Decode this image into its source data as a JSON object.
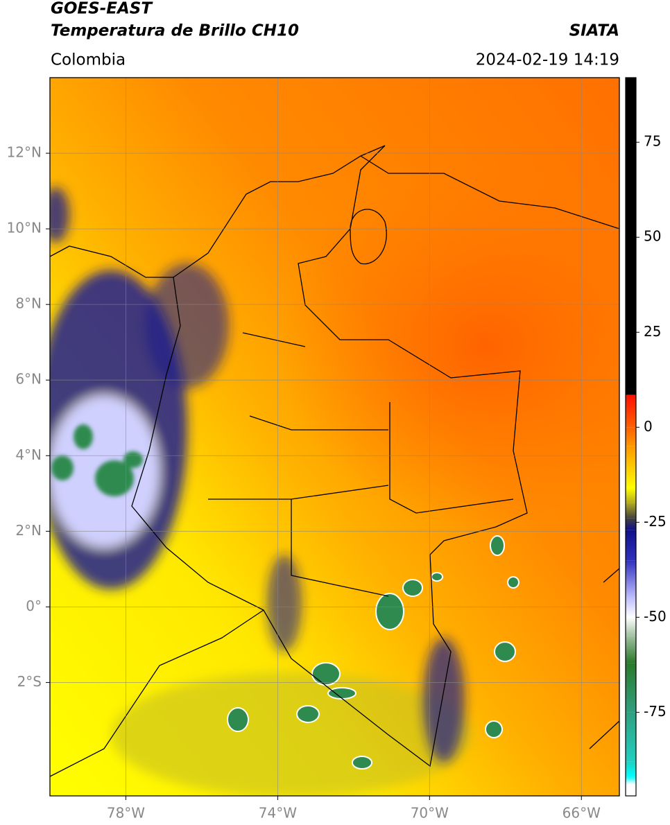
{
  "map": {
    "title": [
      "GOES-EAST",
      "Temperatura de Brillo CH10"
    ],
    "region": "Colombia",
    "agency": "SIATA",
    "datetime": "2024-02-19 14:19",
    "xlim": [
      -80,
      -65
    ],
    "ylim": [
      -5,
      14
    ],
    "xticks": [
      {
        "value": -78,
        "label": "78°W"
      },
      {
        "value": -74,
        "label": "74°W"
      },
      {
        "value": -70,
        "label": "70°W"
      },
      {
        "value": -66,
        "label": "66°W"
      }
    ],
    "yticks": [
      {
        "value": 12,
        "label": "12°N"
      },
      {
        "value": 10,
        "label": "10°N"
      },
      {
        "value": 8,
        "label": "8°N"
      },
      {
        "value": 6,
        "label": "6°N"
      },
      {
        "value": 4,
        "label": "4°N"
      },
      {
        "value": 2,
        "label": "2°N"
      },
      {
        "value": 0,
        "label": "0°"
      },
      {
        "value": -2,
        "label": "2°S"
      }
    ],
    "grid": true,
    "colorbar": {
      "lim": [
        -97,
        92
      ],
      "ticks": [
        75,
        50,
        25,
        0,
        -25,
        -50,
        -75
      ],
      "stops": [
        {
          "value": 92,
          "color": "#000000"
        },
        {
          "value": 8.5,
          "color": "#000000"
        },
        {
          "value": 8.5,
          "color": "#ff1000"
        },
        {
          "value": 0,
          "color": "#ff6000"
        },
        {
          "value": -5,
          "color": "#ff9800"
        },
        {
          "value": -12,
          "color": "#ffd800"
        },
        {
          "value": -16,
          "color": "#ffff00"
        },
        {
          "value": -20,
          "color": "#b0a820"
        },
        {
          "value": -24,
          "color": "#404040"
        },
        {
          "value": -27,
          "color": "#10108a"
        },
        {
          "value": -35,
          "color": "#3030c0"
        },
        {
          "value": -45,
          "color": "#c0c0ff"
        },
        {
          "value": -50,
          "color": "#ffffff"
        },
        {
          "value": -55,
          "color": "#a0c0a0"
        },
        {
          "value": -62,
          "color": "#2a7a2a"
        },
        {
          "value": -75,
          "color": "#30a080"
        },
        {
          "value": -88,
          "color": "#20d0c0"
        },
        {
          "value": -92,
          "color": "#00ffff"
        },
        {
          "value": -94,
          "color": "#ffffff"
        },
        {
          "value": -97,
          "color": "#ffffff"
        }
      ]
    }
  }
}
